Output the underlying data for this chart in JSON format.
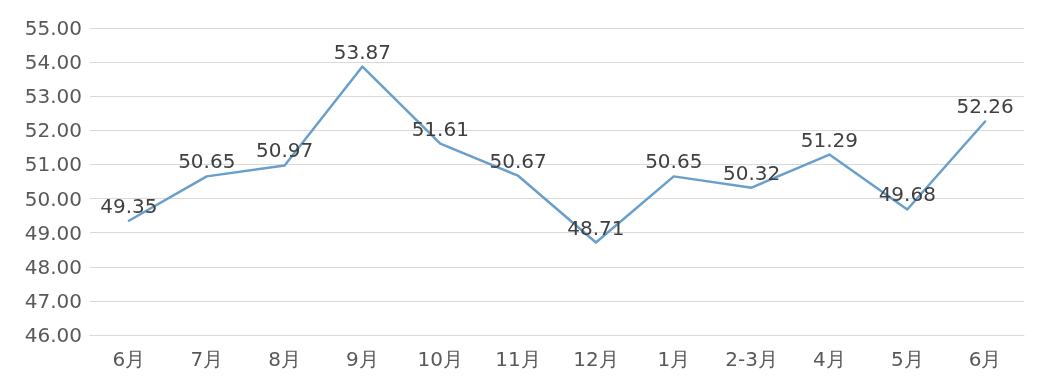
{
  "chart_data": {
    "type": "line",
    "categories": [
      "6月",
      "7月",
      "8月",
      "9月",
      "10月",
      "11月",
      "12月",
      "1月",
      "2-3月",
      "4月",
      "5月",
      "6月"
    ],
    "series": [
      {
        "color": "#6a9ecb",
        "values": [
          49.35,
          50.65,
          50.97,
          53.87,
          51.61,
          50.67,
          48.71,
          50.65,
          50.32,
          51.29,
          49.68,
          52.26
        ]
      }
    ],
    "ylim": [
      46,
      55
    ],
    "yticks": [
      {
        "value": 46,
        "label": "46.00"
      },
      {
        "value": 47,
        "label": "47.00"
      },
      {
        "value": 48,
        "label": "48.00"
      },
      {
        "value": 49,
        "label": "49.00"
      },
      {
        "value": 50,
        "label": "50.00"
      },
      {
        "value": 51,
        "label": "51.00"
      },
      {
        "value": 52,
        "label": "52.00"
      },
      {
        "value": 53,
        "label": "53.00"
      },
      {
        "value": 54,
        "label": "54.00"
      },
      {
        "value": 55,
        "label": "55.00"
      }
    ],
    "grid": "y",
    "data_labels": true,
    "marker": "none",
    "line_style": "solid"
  }
}
